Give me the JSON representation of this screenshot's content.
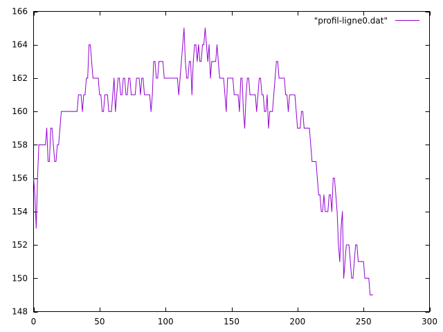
{
  "chart_data": {
    "type": "line",
    "title": "",
    "xlabel": "",
    "ylabel": "",
    "xlim": [
      0,
      300
    ],
    "ylim": [
      148,
      166
    ],
    "xticks": [
      0,
      50,
      100,
      150,
      200,
      250,
      300
    ],
    "yticks": [
      148,
      150,
      152,
      154,
      156,
      158,
      160,
      162,
      164,
      166
    ],
    "grid": false,
    "legend_position": "top-right",
    "series": [
      {
        "name": "\"profil-ligne0.dat\"",
        "color": "#9400d3",
        "points": [
          [
            0,
            156
          ],
          [
            1,
            155
          ],
          [
            2,
            153
          ],
          [
            3,
            156
          ],
          [
            4,
            158
          ],
          [
            5,
            158
          ],
          [
            6,
            158
          ],
          [
            7,
            158
          ],
          [
            8,
            158
          ],
          [
            9,
            158
          ],
          [
            10,
            159
          ],
          [
            11,
            157
          ],
          [
            12,
            157
          ],
          [
            13,
            159
          ],
          [
            14,
            159
          ],
          [
            15,
            158
          ],
          [
            16,
            157
          ],
          [
            17,
            157
          ],
          [
            18,
            158
          ],
          [
            19,
            158
          ],
          [
            20,
            159
          ],
          [
            21,
            160
          ],
          [
            22,
            160
          ],
          [
            23,
            160
          ],
          [
            24,
            160
          ],
          [
            25,
            160
          ],
          [
            26,
            160
          ],
          [
            27,
            160
          ],
          [
            28,
            160
          ],
          [
            29,
            160
          ],
          [
            30,
            160
          ],
          [
            31,
            160
          ],
          [
            32,
            160
          ],
          [
            33,
            160
          ],
          [
            34,
            161
          ],
          [
            35,
            161
          ],
          [
            36,
            161
          ],
          [
            37,
            160
          ],
          [
            38,
            161
          ],
          [
            39,
            161
          ],
          [
            40,
            162
          ],
          [
            41,
            162
          ],
          [
            42,
            164
          ],
          [
            43,
            164
          ],
          [
            44,
            163
          ],
          [
            45,
            162
          ],
          [
            46,
            162
          ],
          [
            47,
            162
          ],
          [
            48,
            162
          ],
          [
            49,
            162
          ],
          [
            50,
            161
          ],
          [
            51,
            161
          ],
          [
            52,
            160
          ],
          [
            53,
            160
          ],
          [
            54,
            161
          ],
          [
            55,
            161
          ],
          [
            56,
            161
          ],
          [
            57,
            160
          ],
          [
            58,
            160
          ],
          [
            59,
            160
          ],
          [
            60,
            161
          ],
          [
            61,
            162
          ],
          [
            62,
            160
          ],
          [
            63,
            161
          ],
          [
            64,
            162
          ],
          [
            65,
            162
          ],
          [
            66,
            161
          ],
          [
            67,
            161
          ],
          [
            68,
            162
          ],
          [
            69,
            162
          ],
          [
            70,
            161
          ],
          [
            71,
            161
          ],
          [
            72,
            162
          ],
          [
            73,
            162
          ],
          [
            74,
            161
          ],
          [
            75,
            161
          ],
          [
            76,
            161
          ],
          [
            77,
            161
          ],
          [
            78,
            162
          ],
          [
            79,
            162
          ],
          [
            80,
            162
          ],
          [
            81,
            161
          ],
          [
            82,
            162
          ],
          [
            83,
            162
          ],
          [
            84,
            161
          ],
          [
            85,
            161
          ],
          [
            86,
            161
          ],
          [
            87,
            161
          ],
          [
            88,
            161
          ],
          [
            89,
            160
          ],
          [
            90,
            161
          ],
          [
            91,
            163
          ],
          [
            92,
            163
          ],
          [
            93,
            162
          ],
          [
            94,
            162
          ],
          [
            95,
            163
          ],
          [
            96,
            163
          ],
          [
            97,
            163
          ],
          [
            98,
            163
          ],
          [
            99,
            162
          ],
          [
            100,
            162
          ],
          [
            101,
            162
          ],
          [
            102,
            162
          ],
          [
            103,
            162
          ],
          [
            104,
            162
          ],
          [
            105,
            162
          ],
          [
            106,
            162
          ],
          [
            107,
            162
          ],
          [
            108,
            162
          ],
          [
            109,
            162
          ],
          [
            110,
            161
          ],
          [
            111,
            162
          ],
          [
            112,
            163
          ],
          [
            113,
            164
          ],
          [
            114,
            165
          ],
          [
            115,
            163
          ],
          [
            116,
            162
          ],
          [
            117,
            162
          ],
          [
            118,
            163
          ],
          [
            119,
            163
          ],
          [
            120,
            161
          ],
          [
            121,
            163
          ],
          [
            122,
            164
          ],
          [
            123,
            164
          ],
          [
            124,
            163
          ],
          [
            125,
            164
          ],
          [
            126,
            163
          ],
          [
            127,
            163
          ],
          [
            128,
            164
          ],
          [
            129,
            164
          ],
          [
            130,
            165
          ],
          [
            131,
            164
          ],
          [
            132,
            163
          ],
          [
            133,
            164
          ],
          [
            134,
            162
          ],
          [
            135,
            163
          ],
          [
            136,
            163
          ],
          [
            137,
            163
          ],
          [
            138,
            163
          ],
          [
            139,
            164
          ],
          [
            140,
            163
          ],
          [
            141,
            162
          ],
          [
            142,
            162
          ],
          [
            143,
            162
          ],
          [
            144,
            162
          ],
          [
            145,
            161
          ],
          [
            146,
            160
          ],
          [
            147,
            162
          ],
          [
            148,
            162
          ],
          [
            149,
            162
          ],
          [
            150,
            162
          ],
          [
            151,
            162
          ],
          [
            152,
            161
          ],
          [
            153,
            161
          ],
          [
            154,
            161
          ],
          [
            155,
            161
          ],
          [
            156,
            160
          ],
          [
            157,
            162
          ],
          [
            158,
            162
          ],
          [
            159,
            160
          ],
          [
            160,
            159
          ],
          [
            161,
            161
          ],
          [
            162,
            162
          ],
          [
            163,
            162
          ],
          [
            164,
            161
          ],
          [
            165,
            161
          ],
          [
            166,
            161
          ],
          [
            167,
            161
          ],
          [
            168,
            161
          ],
          [
            169,
            160
          ],
          [
            170,
            161
          ],
          [
            171,
            162
          ],
          [
            172,
            162
          ],
          [
            173,
            161
          ],
          [
            174,
            161
          ],
          [
            175,
            160
          ],
          [
            176,
            160
          ],
          [
            177,
            161
          ],
          [
            178,
            159
          ],
          [
            179,
            160
          ],
          [
            180,
            160
          ],
          [
            181,
            160
          ],
          [
            182,
            161
          ],
          [
            183,
            162
          ],
          [
            184,
            163
          ],
          [
            185,
            163
          ],
          [
            186,
            162
          ],
          [
            187,
            162
          ],
          [
            188,
            162
          ],
          [
            189,
            162
          ],
          [
            190,
            162
          ],
          [
            191,
            161
          ],
          [
            192,
            161
          ],
          [
            193,
            160
          ],
          [
            194,
            161
          ],
          [
            195,
            161
          ],
          [
            196,
            161
          ],
          [
            197,
            161
          ],
          [
            198,
            161
          ],
          [
            199,
            160
          ],
          [
            200,
            159
          ],
          [
            201,
            159
          ],
          [
            202,
            159
          ],
          [
            203,
            160
          ],
          [
            204,
            160
          ],
          [
            205,
            159
          ],
          [
            206,
            159
          ],
          [
            207,
            159
          ],
          [
            208,
            159
          ],
          [
            209,
            159
          ],
          [
            210,
            158
          ],
          [
            211,
            157
          ],
          [
            212,
            157
          ],
          [
            213,
            157
          ],
          [
            214,
            157
          ],
          [
            215,
            156
          ],
          [
            216,
            155
          ],
          [
            217,
            155
          ],
          [
            218,
            154
          ],
          [
            219,
            154
          ],
          [
            220,
            155
          ],
          [
            221,
            154
          ],
          [
            222,
            154
          ],
          [
            223,
            154
          ],
          [
            224,
            155
          ],
          [
            225,
            155
          ],
          [
            226,
            154
          ],
          [
            227,
            156
          ],
          [
            228,
            156
          ],
          [
            229,
            155
          ],
          [
            230,
            154
          ],
          [
            231,
            152
          ],
          [
            232,
            151
          ],
          [
            233,
            153
          ],
          [
            234,
            154
          ],
          [
            235,
            150
          ],
          [
            236,
            151
          ],
          [
            237,
            152
          ],
          [
            238,
            152
          ],
          [
            239,
            152
          ],
          [
            240,
            151
          ],
          [
            241,
            150
          ],
          [
            242,
            150
          ],
          [
            243,
            151
          ],
          [
            244,
            152
          ],
          [
            245,
            152
          ],
          [
            246,
            151
          ],
          [
            247,
            151
          ],
          [
            248,
            151
          ],
          [
            249,
            151
          ],
          [
            250,
            151
          ],
          [
            251,
            150
          ],
          [
            252,
            150
          ],
          [
            253,
            150
          ],
          [
            254,
            150
          ],
          [
            255,
            149
          ],
          [
            256,
            149
          ],
          [
            257,
            149
          ]
        ]
      }
    ]
  }
}
